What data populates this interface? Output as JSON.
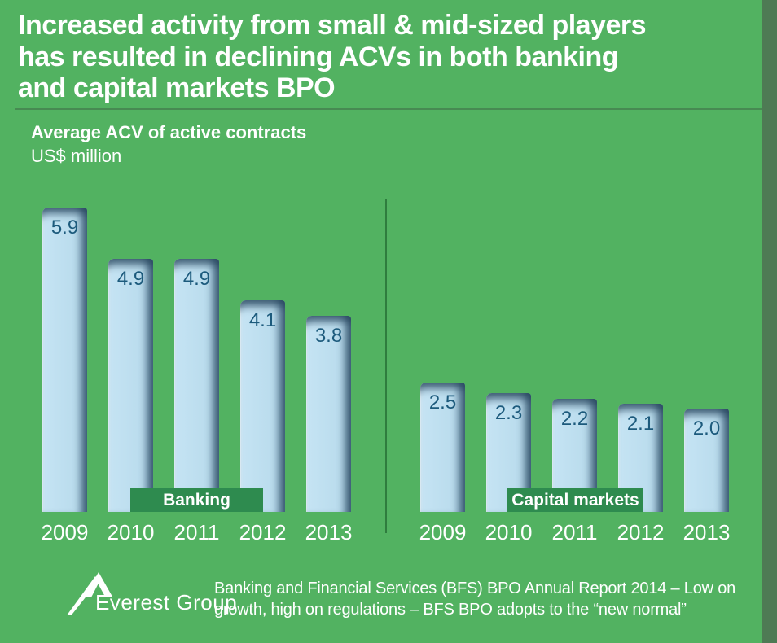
{
  "title": {
    "lines": [
      "Increased activity from small & mid-sized players",
      "has resulted in declining ACVs in both banking",
      "and capital markets BPO"
    ]
  },
  "chart_header": {
    "title": "Average ACV of active contracts",
    "unit": "US$ million"
  },
  "chart_data": {
    "type": "bar",
    "title": "Average ACV of active contracts",
    "ylabel": "US$ million",
    "categories": [
      "2009",
      "2010",
      "2011",
      "2012",
      "2013"
    ],
    "series": [
      {
        "name": "Banking",
        "values": [
          5.9,
          4.9,
          4.9,
          4.1,
          3.8
        ]
      },
      {
        "name": "Capital markets",
        "values": [
          2.5,
          2.3,
          2.2,
          2.1,
          2.0
        ]
      }
    ],
    "value_labels": true,
    "axes_visible": false,
    "legend_position": "inline-bottom",
    "ylim": [
      0,
      6.2
    ]
  },
  "footer": {
    "logo_text": "Everest Group",
    "lines": [
      "Banking and Financial Services (BFS) BPO Annual Report 2014 – Low on",
      "growth, high on regulations – BFS BPO adopts to the “new normal”"
    ]
  },
  "colors": {
    "background": "#52B261",
    "right_strip": "#4E7A54",
    "title_rule": "#478A52",
    "group_divider": "#2F7D3E",
    "series_label_box": "#2E8B4F",
    "bar_fill": "#BADCED",
    "bar_shadow": "#53748C",
    "value_text": "#1C5A7C",
    "text": "#FFFFFF"
  }
}
